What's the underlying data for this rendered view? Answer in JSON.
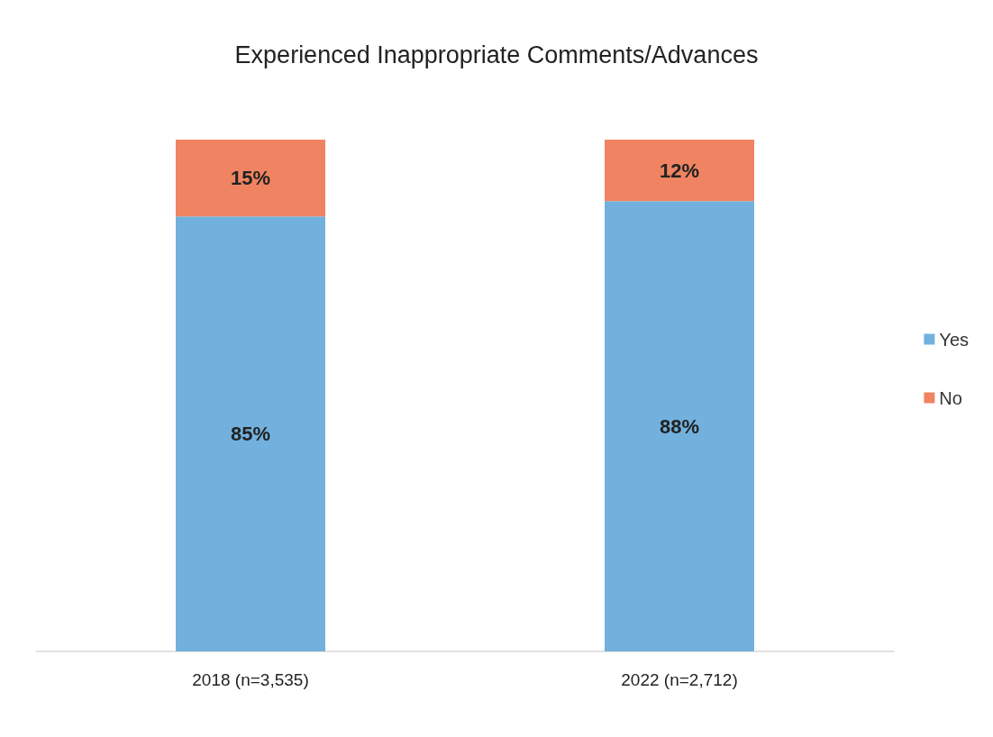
{
  "chart_data": {
    "type": "bar",
    "title": "Experienced Inappropriate Comments/Advances",
    "categories": [
      "2018 (n=3,535)",
      "2022 (n=2,712)"
    ],
    "stacked": true,
    "series": [
      {
        "name": "Yes",
        "color": "#72b1de",
        "values": [
          85,
          88
        ],
        "value_labels": [
          "85%",
          "88%"
        ]
      },
      {
        "name": "No",
        "color": "#f08462",
        "values": [
          15,
          12
        ],
        "value_labels": [
          "15%",
          "12%"
        ]
      }
    ],
    "legend": "right"
  }
}
